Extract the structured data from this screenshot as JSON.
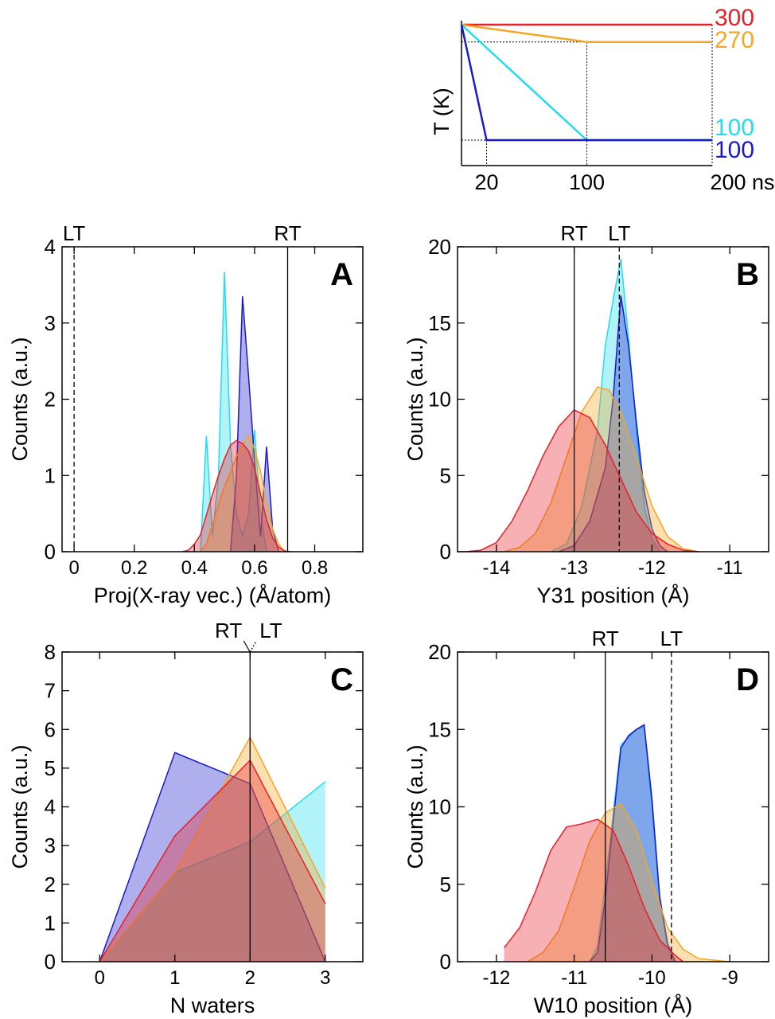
{
  "colors": {
    "red": "#e8202a",
    "orange": "#f5a623",
    "cyan": "#22dcf0",
    "blue": "#1a1acc",
    "black": "#000000"
  },
  "chart_data": [
    {
      "type": "line",
      "id": "inset",
      "ylabel": "T (K)",
      "x_ticks": [
        "20",
        "100",
        "200 ns"
      ],
      "xlim": [
        0,
        200
      ],
      "ylim": [
        100,
        300
      ],
      "series": [
        {
          "name": "300",
          "color_key": "red",
          "points": [
            [
              0,
              300
            ],
            [
              200,
              300
            ]
          ]
        },
        {
          "name": "270",
          "color_key": "orange",
          "points": [
            [
              0,
              300
            ],
            [
              100,
              270
            ],
            [
              200,
              270
            ]
          ]
        },
        {
          "name": "100",
          "color_key": "cyan",
          "points": [
            [
              0,
              300
            ],
            [
              100,
              100
            ],
            [
              200,
              100
            ]
          ]
        },
        {
          "name": "100",
          "color_key": "blue",
          "points": [
            [
              0,
              300
            ],
            [
              20,
              100
            ],
            [
              200,
              100
            ]
          ]
        }
      ]
    },
    {
      "type": "area",
      "id": "A",
      "panel_label": "A",
      "xlabel": "Proj(X-ray vec.) (Å/atom)",
      "ylabel": "Counts (a.u.)",
      "xlim": [
        -0.04,
        0.96
      ],
      "ylim": [
        0,
        4
      ],
      "xticks": [
        0,
        0.2,
        0.4,
        0.6,
        0.8
      ],
      "yticks": [
        0,
        1,
        2,
        3,
        4
      ],
      "ref_lines": [
        {
          "label": "LT",
          "x": 0.0,
          "dash": true
        },
        {
          "label": "RT",
          "x": 0.71,
          "dash": false
        }
      ],
      "series": [
        {
          "color_key": "cyan",
          "points": [
            [
              0.42,
              0
            ],
            [
              0.44,
              1.52
            ],
            [
              0.46,
              0.2
            ],
            [
              0.48,
              1.0
            ],
            [
              0.5,
              3.67
            ],
            [
              0.52,
              1.4
            ],
            [
              0.54,
              0.5
            ],
            [
              0.56,
              0.2
            ],
            [
              0.58,
              0.5
            ],
            [
              0.6,
              1.6
            ],
            [
              0.62,
              0.5
            ],
            [
              0.64,
              0
            ]
          ]
        },
        {
          "color_key": "blue",
          "points": [
            [
              0.52,
              0
            ],
            [
              0.54,
              1.0
            ],
            [
              0.56,
              3.35
            ],
            [
              0.58,
              2.3
            ],
            [
              0.6,
              1.2
            ],
            [
              0.62,
              0.2
            ],
            [
              0.64,
              1.38
            ],
            [
              0.66,
              0.3
            ],
            [
              0.68,
              0
            ]
          ]
        },
        {
          "color_key": "orange",
          "points": [
            [
              0.42,
              0
            ],
            [
              0.44,
              0.1
            ],
            [
              0.46,
              0.35
            ],
            [
              0.48,
              0.62
            ],
            [
              0.5,
              0.85
            ],
            [
              0.52,
              1.05
            ],
            [
              0.54,
              1.25
            ],
            [
              0.56,
              1.4
            ],
            [
              0.58,
              1.53
            ],
            [
              0.6,
              1.35
            ],
            [
              0.62,
              1.05
            ],
            [
              0.64,
              0.65
            ],
            [
              0.66,
              0.3
            ],
            [
              0.68,
              0.1
            ],
            [
              0.7,
              0
            ]
          ]
        },
        {
          "color_key": "red",
          "points": [
            [
              0.36,
              0
            ],
            [
              0.38,
              0.02
            ],
            [
              0.4,
              0.1
            ],
            [
              0.42,
              0.22
            ],
            [
              0.44,
              0.48
            ],
            [
              0.46,
              0.75
            ],
            [
              0.48,
              1.0
            ],
            [
              0.5,
              1.22
            ],
            [
              0.52,
              1.4
            ],
            [
              0.54,
              1.46
            ],
            [
              0.56,
              1.42
            ],
            [
              0.58,
              1.32
            ],
            [
              0.6,
              1.1
            ],
            [
              0.62,
              0.75
            ],
            [
              0.64,
              0.42
            ],
            [
              0.66,
              0.18
            ],
            [
              0.68,
              0.06
            ],
            [
              0.7,
              0.01
            ],
            [
              0.72,
              0
            ]
          ]
        }
      ]
    },
    {
      "type": "area",
      "id": "B",
      "panel_label": "B",
      "xlabel": "Y31 position (Å)",
      "ylabel": "Counts (a.u.)",
      "xlim": [
        -14.5,
        -10.5
      ],
      "ylim": [
        0,
        20
      ],
      "xticks": [
        -14,
        -13,
        -12,
        -11
      ],
      "yticks": [
        0,
        5,
        10,
        15,
        20
      ],
      "ref_lines": [
        {
          "label": "RT",
          "x": -13.0,
          "dash": false
        },
        {
          "label": "LT",
          "x": -12.42,
          "dash": true
        }
      ],
      "series": [
        {
          "color_key": "cyan",
          "points": [
            [
              -13.3,
              0
            ],
            [
              -13.1,
              0.5
            ],
            [
              -12.9,
              3.0
            ],
            [
              -12.7,
              8.0
            ],
            [
              -12.6,
              13.5
            ],
            [
              -12.5,
              16.5
            ],
            [
              -12.4,
              19.2
            ],
            [
              -12.3,
              14.0
            ],
            [
              -12.2,
              8.0
            ],
            [
              -12.1,
              3.0
            ],
            [
              -12.0,
              0.8
            ],
            [
              -11.9,
              0
            ]
          ]
        },
        {
          "color_key": "blue",
          "points": [
            [
              -13.2,
              0
            ],
            [
              -13.0,
              0.4
            ],
            [
              -12.8,
              2.0
            ],
            [
              -12.6,
              5.5
            ],
            [
              -12.5,
              10.0
            ],
            [
              -12.4,
              16.8
            ],
            [
              -12.3,
              13.5
            ],
            [
              -12.2,
              8.5
            ],
            [
              -12.1,
              4.0
            ],
            [
              -12.0,
              1.5
            ],
            [
              -11.9,
              0.4
            ],
            [
              -11.8,
              0
            ]
          ]
        },
        {
          "color_key": "orange",
          "points": [
            [
              -13.9,
              0
            ],
            [
              -13.7,
              0.3
            ],
            [
              -13.5,
              1.2
            ],
            [
              -13.3,
              3.2
            ],
            [
              -13.1,
              6.2
            ],
            [
              -12.9,
              9.2
            ],
            [
              -12.7,
              10.8
            ],
            [
              -12.55,
              10.6
            ],
            [
              -12.4,
              9.2
            ],
            [
              -12.2,
              6.2
            ],
            [
              -12.0,
              3.0
            ],
            [
              -11.8,
              1.0
            ],
            [
              -11.6,
              0.2
            ],
            [
              -11.4,
              0
            ]
          ]
        },
        {
          "color_key": "red",
          "points": [
            [
              -14.4,
              0
            ],
            [
              -14.2,
              0.1
            ],
            [
              -14.0,
              0.6
            ],
            [
              -13.8,
              2.0
            ],
            [
              -13.6,
              4.0
            ],
            [
              -13.4,
              6.3
            ],
            [
              -13.2,
              8.2
            ],
            [
              -13.0,
              9.3
            ],
            [
              -12.8,
              8.8
            ],
            [
              -12.6,
              7.0
            ],
            [
              -12.4,
              4.8
            ],
            [
              -12.2,
              2.6
            ],
            [
              -12.0,
              1.2
            ],
            [
              -11.8,
              0.5
            ],
            [
              -11.6,
              0.1
            ],
            [
              -11.4,
              0
            ]
          ]
        }
      ]
    },
    {
      "type": "area",
      "id": "C",
      "panel_label": "C",
      "xlabel": "N waters",
      "ylabel": "Counts (a.u.)",
      "xlim": [
        -0.5,
        3.5
      ],
      "ylim": [
        0,
        8
      ],
      "xticks": [
        0,
        1,
        2,
        3
      ],
      "yticks": [
        0,
        1,
        2,
        3,
        4,
        5,
        6,
        7,
        8
      ],
      "ref_lines": [
        {
          "label": "RT",
          "x": 2,
          "dash": false
        },
        {
          "label": "LT",
          "x": 2,
          "dash": true
        }
      ],
      "series": [
        {
          "color_key": "cyan",
          "points": [
            [
              0,
              0
            ],
            [
              1,
              2.3
            ],
            [
              2,
              3.1
            ],
            [
              3,
              4.65
            ]
          ]
        },
        {
          "color_key": "blue",
          "points": [
            [
              0,
              0
            ],
            [
              1,
              5.4
            ],
            [
              2,
              4.6
            ],
            [
              3,
              0
            ]
          ]
        },
        {
          "color_key": "orange",
          "points": [
            [
              0,
              0
            ],
            [
              1,
              2.3
            ],
            [
              2,
              5.8
            ],
            [
              3,
              1.9
            ]
          ]
        },
        {
          "color_key": "red",
          "points": [
            [
              0,
              0
            ],
            [
              1,
              3.25
            ],
            [
              2,
              5.2
            ],
            [
              3,
              1.5
            ]
          ]
        }
      ]
    },
    {
      "type": "area",
      "id": "D",
      "panel_label": "D",
      "xlabel": "W10 position (Å)",
      "ylabel": "Counts (a.u.)",
      "xlim": [
        -12.5,
        -8.5
      ],
      "ylim": [
        0,
        20
      ],
      "xticks": [
        -12,
        -11,
        -10,
        -9
      ],
      "yticks": [
        0,
        5,
        10,
        15,
        20
      ],
      "ref_lines": [
        {
          "label": "RT",
          "x": -10.6,
          "dash": false
        },
        {
          "label": "LT",
          "x": -9.75,
          "dash": true
        }
      ],
      "series": [
        {
          "color_key": "cyan",
          "points": [
            [
              -10.8,
              0
            ],
            [
              -10.7,
              1.0
            ],
            [
              -10.6,
              5.0
            ],
            [
              -10.5,
              9.5
            ],
            [
              -10.4,
              14.0
            ],
            [
              -10.3,
              14.5
            ],
            [
              -10.2,
              15.0
            ],
            [
              -10.1,
              15.2
            ],
            [
              -10.0,
              10.0
            ],
            [
              -9.9,
              4.0
            ],
            [
              -9.8,
              1.0
            ],
            [
              -9.7,
              0
            ]
          ]
        },
        {
          "color_key": "blue",
          "points": [
            [
              -10.8,
              0
            ],
            [
              -10.7,
              0.6
            ],
            [
              -10.6,
              4.0
            ],
            [
              -10.5,
              9.0
            ],
            [
              -10.4,
              13.8
            ],
            [
              -10.3,
              14.6
            ],
            [
              -10.2,
              15.0
            ],
            [
              -10.1,
              15.3
            ],
            [
              -10.0,
              10.5
            ],
            [
              -9.9,
              4.2
            ],
            [
              -9.8,
              1.2
            ],
            [
              -9.7,
              0
            ]
          ]
        },
        {
          "color_key": "orange",
          "points": [
            [
              -11.6,
              0
            ],
            [
              -11.4,
              0.6
            ],
            [
              -11.2,
              2.0
            ],
            [
              -11.0,
              4.8
            ],
            [
              -10.8,
              7.8
            ],
            [
              -10.6,
              9.6
            ],
            [
              -10.4,
              10.2
            ],
            [
              -10.2,
              8.5
            ],
            [
              -10.0,
              5.2
            ],
            [
              -9.8,
              2.2
            ],
            [
              -9.6,
              0.8
            ],
            [
              -9.4,
              0.2
            ],
            [
              -9.0,
              0
            ]
          ]
        },
        {
          "color_key": "red",
          "points": [
            [
              -11.9,
              0.9
            ],
            [
              -11.7,
              2.2
            ],
            [
              -11.5,
              4.5
            ],
            [
              -11.3,
              7.2
            ],
            [
              -11.1,
              8.7
            ],
            [
              -11.0,
              8.8
            ],
            [
              -10.9,
              8.9
            ],
            [
              -10.7,
              9.2
            ],
            [
              -10.5,
              8.5
            ],
            [
              -10.3,
              6.2
            ],
            [
              -10.1,
              3.5
            ],
            [
              -9.9,
              1.4
            ],
            [
              -9.7,
              0.4
            ],
            [
              -9.6,
              0
            ]
          ]
        }
      ]
    }
  ]
}
